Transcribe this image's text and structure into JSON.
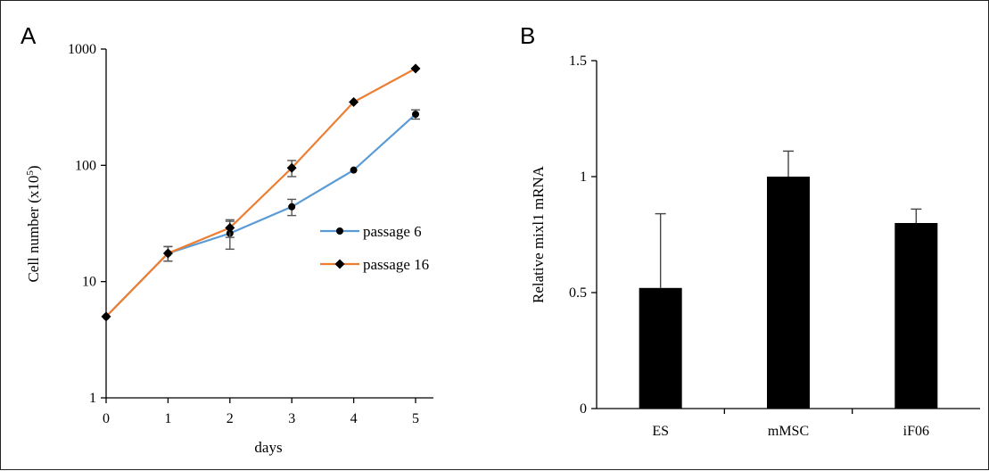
{
  "chart_data": [
    {
      "panel": "A",
      "type": "line",
      "xlabel": "days",
      "ylabel": "Cell number (x10",
      "ylabel_sup": "5",
      "ylabel_end": ")",
      "ylog": true,
      "ylim": [
        1,
        1000
      ],
      "xlim": [
        0,
        5
      ],
      "xticks": [
        "0",
        "1",
        "2",
        "3",
        "4",
        "5"
      ],
      "yticks": [
        "1",
        "10",
        "100",
        "1000"
      ],
      "legend_position": "right",
      "x": [
        0,
        1,
        2,
        3,
        4,
        5
      ],
      "series": [
        {
          "name": "passage 6",
          "marker": "circle",
          "color": "#5b9bd5",
          "values": [
            5,
            17.5,
            26,
            44,
            91,
            275
          ],
          "err_lo": [
            0,
            2.5,
            7,
            7,
            0,
            25
          ],
          "err_hi": [
            0,
            2.5,
            7,
            7,
            0,
            25
          ]
        },
        {
          "name": "passage 16",
          "marker": "diamond",
          "color": "#ed7d31",
          "values": [
            5,
            17.5,
            29,
            95,
            350,
            680
          ],
          "err_lo": [
            0,
            2.5,
            5,
            15,
            0,
            0
          ],
          "err_hi": [
            0,
            2.5,
            5,
            15,
            0,
            0
          ]
        }
      ]
    },
    {
      "panel": "B",
      "type": "bar",
      "ylabel": "Relative mixl1 mRNA",
      "xlabel": "",
      "ylim": [
        0,
        1.5
      ],
      "yticks": [
        "0",
        "0.5",
        "1",
        "1.5"
      ],
      "ytick_values": [
        0,
        0.5,
        1,
        1.5
      ],
      "categories": [
        "ES",
        "mMSC",
        "iF06"
      ],
      "values": [
        0.52,
        1.0,
        0.8
      ],
      "errors": [
        0.32,
        0.11,
        0.06
      ],
      "color": "#000000"
    }
  ]
}
